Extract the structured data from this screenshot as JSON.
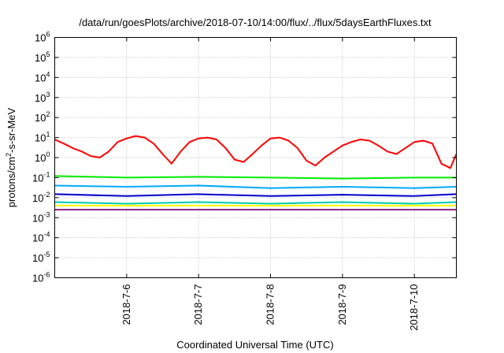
{
  "chart_data": {
    "type": "line",
    "title": "/data/run/goesPlots/archive/2018-07-10/14:00/flux/../flux/5daysEarthFluxes.txt",
    "xlabel": "Coordinated Universal Time (UTC)",
    "ylabel": "protons/cm2-s-sr-MeV",
    "yscale": "log",
    "ylim": [
      1e-06,
      1000000.0
    ],
    "xlim": [
      "2018-07-05 00:00",
      "2018-07-10 14:00"
    ],
    "y_ticks": [
      {
        "base": "10",
        "exp": "-6",
        "value": 1e-06
      },
      {
        "base": "10",
        "exp": "-5",
        "value": 1e-05
      },
      {
        "base": "10",
        "exp": "-4",
        "value": 0.0001
      },
      {
        "base": "10",
        "exp": "-3",
        "value": 0.001
      },
      {
        "base": "10",
        "exp": "-2",
        "value": 0.01
      },
      {
        "base": "10",
        "exp": "-1",
        "value": 0.1
      },
      {
        "base": "10",
        "exp": "0",
        "value": 1
      },
      {
        "base": "10",
        "exp": "1",
        "value": 10
      },
      {
        "base": "10",
        "exp": "2",
        "value": 100
      },
      {
        "base": "10",
        "exp": "3",
        "value": 1000
      },
      {
        "base": "10",
        "exp": "4",
        "value": 10000
      },
      {
        "base": "10",
        "exp": "5",
        "value": 100000
      },
      {
        "base": "10",
        "exp": "6",
        "value": 1000000
      }
    ],
    "x_ticks": [
      {
        "label": "2018-7-6",
        "value": "2018-07-06 00:00"
      },
      {
        "label": "2018-7-7",
        "value": "2018-07-07 00:00"
      },
      {
        "label": "2018-7-8",
        "value": "2018-07-08 00:00"
      },
      {
        "label": "2018-7-9",
        "value": "2018-07-09 00:00"
      },
      {
        "label": "2018-7-10",
        "value": "2018-07-10 00:00"
      }
    ],
    "grid": true,
    "legend": "none",
    "series": [
      {
        "color": "#ff0000",
        "x": [
          "2018-07-05 00:00",
          "2018-07-05 03:00",
          "2018-07-05 06:00",
          "2018-07-05 09:00",
          "2018-07-05 12:00",
          "2018-07-05 15:00",
          "2018-07-05 18:00",
          "2018-07-05 21:00",
          "2018-07-06 00:00",
          "2018-07-06 03:00",
          "2018-07-06 06:00",
          "2018-07-06 09:00",
          "2018-07-06 12:00",
          "2018-07-06 15:00",
          "2018-07-06 18:00",
          "2018-07-06 21:00",
          "2018-07-07 00:00",
          "2018-07-07 03:00",
          "2018-07-07 06:00",
          "2018-07-07 09:00",
          "2018-07-07 12:00",
          "2018-07-07 15:00",
          "2018-07-07 18:00",
          "2018-07-07 21:00",
          "2018-07-08 00:00",
          "2018-07-08 03:00",
          "2018-07-08 06:00",
          "2018-07-08 09:00",
          "2018-07-08 12:00",
          "2018-07-08 15:00",
          "2018-07-08 18:00",
          "2018-07-08 21:00",
          "2018-07-09 00:00",
          "2018-07-09 03:00",
          "2018-07-09 06:00",
          "2018-07-09 09:00",
          "2018-07-09 12:00",
          "2018-07-09 15:00",
          "2018-07-09 18:00",
          "2018-07-09 21:00",
          "2018-07-10 00:00",
          "2018-07-10 03:00",
          "2018-07-10 06:00",
          "2018-07-10 09:00",
          "2018-07-10 12:00",
          "2018-07-10 14:00"
        ],
        "values": [
          8,
          5,
          3,
          2,
          1.2,
          1,
          2,
          6,
          9,
          12,
          10,
          5,
          1.5,
          0.5,
          2,
          6,
          9,
          10,
          8,
          3,
          0.8,
          0.6,
          1.5,
          4,
          9,
          10,
          7,
          3,
          0.7,
          0.4,
          1,
          2,
          4,
          6,
          8,
          7,
          4,
          2,
          1.5,
          3,
          6,
          7,
          5,
          0.5,
          0.3,
          1.5
        ]
      },
      {
        "color": "#00ee00",
        "x": [
          "2018-07-05 00:00",
          "2018-07-06 00:00",
          "2018-07-07 00:00",
          "2018-07-08 00:00",
          "2018-07-09 00:00",
          "2018-07-10 00:00",
          "2018-07-10 14:00"
        ],
        "values": [
          0.12,
          0.1,
          0.11,
          0.1,
          0.09,
          0.1,
          0.1
        ]
      },
      {
        "color": "#00aaff",
        "x": [
          "2018-07-05 00:00",
          "2018-07-06 00:00",
          "2018-07-07 00:00",
          "2018-07-08 00:00",
          "2018-07-09 00:00",
          "2018-07-10 00:00",
          "2018-07-10 14:00"
        ],
        "values": [
          0.04,
          0.035,
          0.04,
          0.03,
          0.035,
          0.03,
          0.035
        ]
      },
      {
        "color": "#0000cc",
        "x": [
          "2018-07-05 00:00",
          "2018-07-06 00:00",
          "2018-07-07 00:00",
          "2018-07-08 00:00",
          "2018-07-09 00:00",
          "2018-07-10 00:00",
          "2018-07-10 14:00"
        ],
        "values": [
          0.015,
          0.012,
          0.015,
          0.012,
          0.014,
          0.012,
          0.015
        ]
      },
      {
        "color": "#00ccaa",
        "x": [
          "2018-07-05 00:00",
          "2018-07-06 00:00",
          "2018-07-07 00:00",
          "2018-07-08 00:00",
          "2018-07-09 00:00",
          "2018-07-10 00:00",
          "2018-07-10 14:00"
        ],
        "values": [
          0.006,
          0.005,
          0.006,
          0.005,
          0.006,
          0.005,
          0.006
        ]
      },
      {
        "color": "#ffff00",
        "x": [
          "2018-07-05 00:00",
          "2018-07-06 00:00",
          "2018-07-07 00:00",
          "2018-07-08 00:00",
          "2018-07-09 00:00",
          "2018-07-10 00:00",
          "2018-07-10 14:00"
        ],
        "values": [
          0.004,
          0.004,
          0.004,
          0.004,
          0.004,
          0.004,
          0.004
        ]
      },
      {
        "color": "#882288",
        "x": [
          "2018-07-05 00:00",
          "2018-07-06 00:00",
          "2018-07-07 00:00",
          "2018-07-08 00:00",
          "2018-07-09 00:00",
          "2018-07-10 00:00",
          "2018-07-10 14:00"
        ],
        "values": [
          0.0025,
          0.0025,
          0.0025,
          0.0025,
          0.0025,
          0.0025,
          0.0025
        ]
      }
    ]
  }
}
